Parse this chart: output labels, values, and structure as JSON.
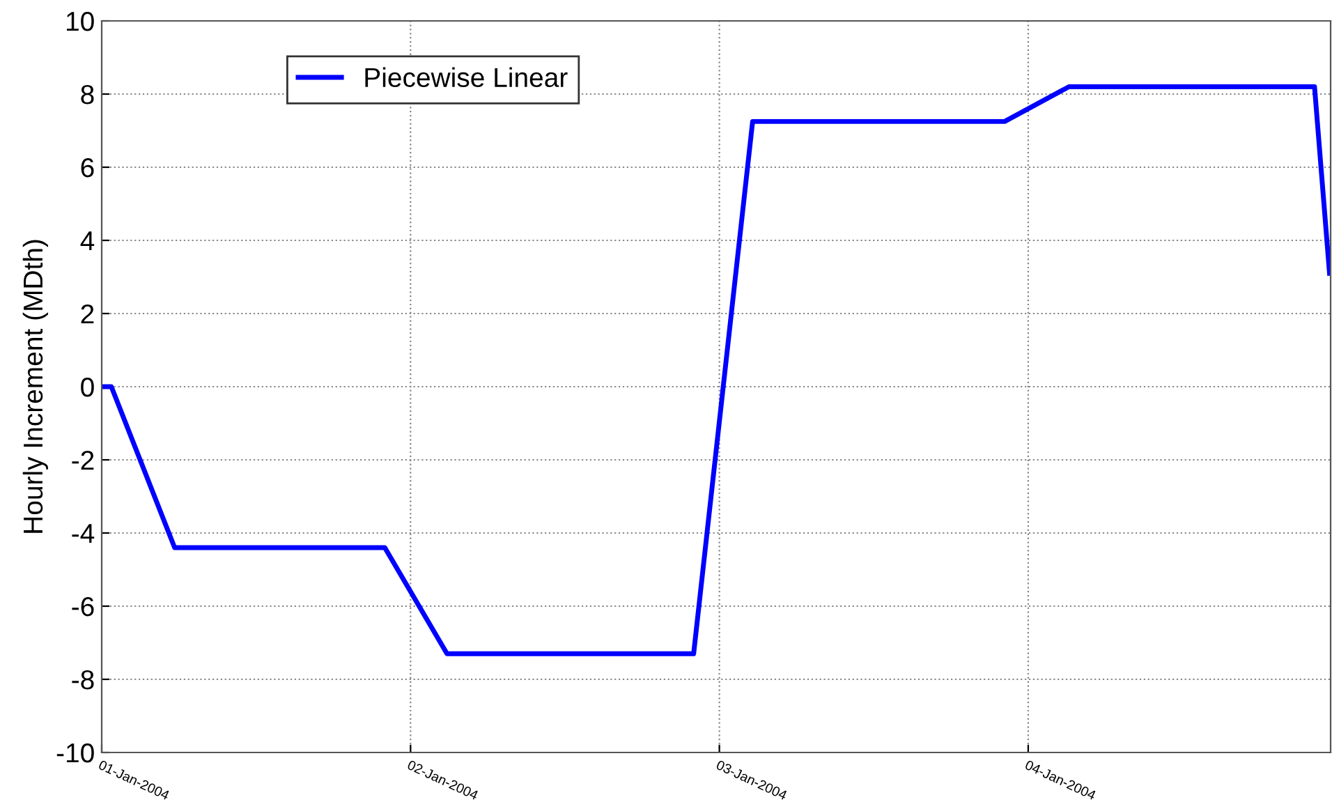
{
  "chart_data": {
    "type": "line",
    "ylabel": "Hourly Increment (MDth)",
    "x": [
      "2004-01-01T00:00",
      "2004-01-01T00:45",
      "2004-01-01T05:40",
      "2004-01-01T22:00",
      "2004-01-02T02:50",
      "2004-01-02T22:00",
      "2004-01-03T02:35",
      "2004-01-03T22:10",
      "2004-01-04T03:10",
      "2004-01-04T22:15",
      "2004-01-04T23:25"
    ],
    "series": [
      {
        "name": "Piecewise Linear",
        "color": "#0000ff",
        "values": [
          0,
          0,
          -4.4,
          -4.4,
          -7.3,
          -7.3,
          7.25,
          7.25,
          8.2,
          8.2,
          3.1
        ]
      }
    ],
    "xlim": [
      "2004-01-01T00:00",
      "2004-01-04T23:30"
    ],
    "xticks": [
      {
        "value": "2004-01-01",
        "label": "01-Jan-2004"
      },
      {
        "value": "2004-01-02",
        "label": "02-Jan-2004"
      },
      {
        "value": "2004-01-03",
        "label": "03-Jan-2004"
      },
      {
        "value": "2004-01-04",
        "label": "04-Jan-2004"
      }
    ],
    "ylim": [
      -10,
      10
    ],
    "yticks": [
      -10,
      -8,
      -6,
      -4,
      -2,
      0,
      2,
      4,
      6,
      8,
      10
    ],
    "grid": true,
    "legend": "top left",
    "line_style": "solid",
    "marker": "none"
  }
}
